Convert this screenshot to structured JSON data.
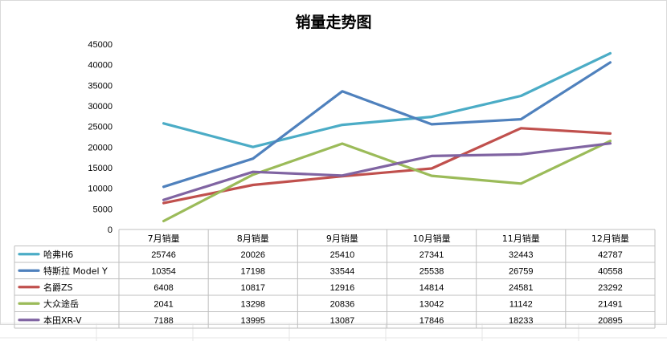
{
  "chart_data": {
    "type": "line",
    "title": "销量走势图",
    "categories": [
      "7月销量",
      "8月销量",
      "9月销量",
      "10月销量",
      "11月销量",
      "12月销量"
    ],
    "ylim": [
      0,
      45000
    ],
    "yticks": [
      "0",
      "5000",
      "10000",
      "15000",
      "20000",
      "25000",
      "30000",
      "35000",
      "40000",
      "45000"
    ],
    "grid": false,
    "legend": "data-table",
    "series": [
      {
        "name": "哈弗H6",
        "color": "#4BACC6",
        "values": [
          25746,
          20026,
          25410,
          27341,
          32443,
          42787
        ]
      },
      {
        "name": "特斯拉 Model Y",
        "color": "#4F81BD",
        "values": [
          10354,
          17198,
          33544,
          25538,
          26759,
          40558
        ]
      },
      {
        "name": "名爵ZS",
        "color": "#C0504D",
        "values": [
          6408,
          10817,
          12916,
          14814,
          24581,
          23292
        ]
      },
      {
        "name": "大众途岳",
        "color": "#9BBB59",
        "values": [
          2041,
          13298,
          20836,
          13042,
          11142,
          21491
        ]
      },
      {
        "name": "本田XR-V",
        "color": "#8064A2",
        "values": [
          7188,
          13995,
          13087,
          17846,
          18233,
          20895
        ]
      }
    ]
  }
}
